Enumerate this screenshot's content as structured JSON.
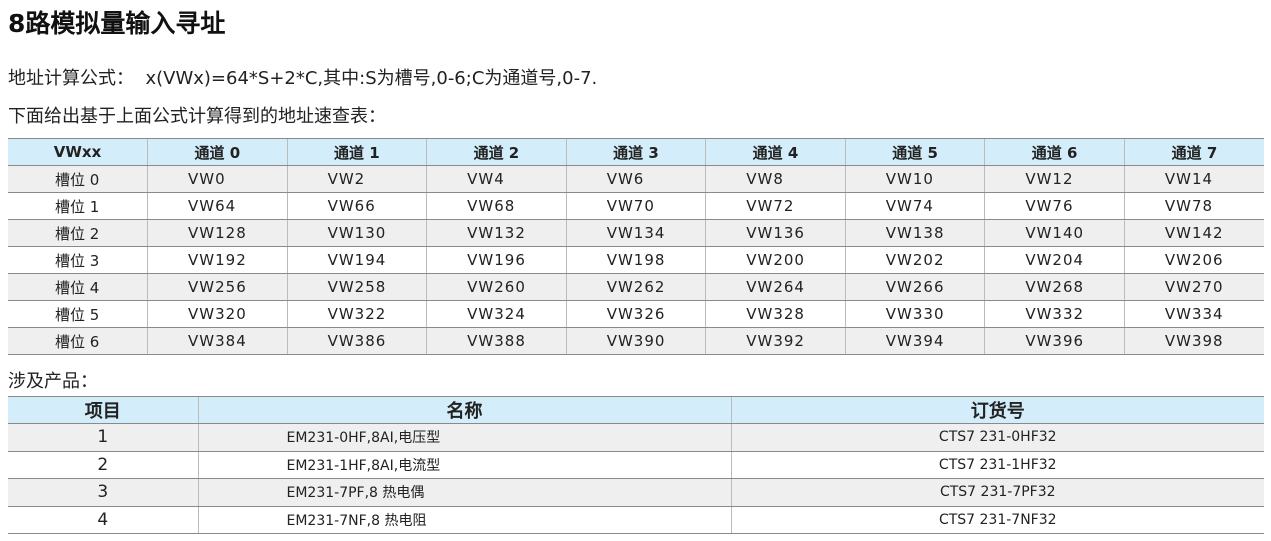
{
  "title": "8路模拟量输入寻址",
  "formula_label": "地址计算公式：",
  "formula": "x(VWx)=64*S+2*C,其中:S为槽号,0-6;C为通道号,0-7.",
  "intro": "下面给出基于上面公式计算得到的地址速查表：",
  "address_table": {
    "headers": [
      "VWxx",
      "通道 0",
      "通道 1",
      "通道 2",
      "通道 3",
      "通道 4",
      "通道 5",
      "通道 6",
      "通道 7"
    ],
    "rows": [
      [
        "槽位 0",
        "VW0",
        "VW2",
        "VW4",
        "VW6",
        "VW8",
        "VW10",
        "VW12",
        "VW14"
      ],
      [
        "槽位 1",
        "VW64",
        "VW66",
        "VW68",
        "VW70",
        "VW72",
        "VW74",
        "VW76",
        "VW78"
      ],
      [
        "槽位 2",
        "VW128",
        "VW130",
        "VW132",
        "VW134",
        "VW136",
        "VW138",
        "VW140",
        "VW142"
      ],
      [
        "槽位 3",
        "VW192",
        "VW194",
        "VW196",
        "VW198",
        "VW200",
        "VW202",
        "VW204",
        "VW206"
      ],
      [
        "槽位 4",
        "VW256",
        "VW258",
        "VW260",
        "VW262",
        "VW264",
        "VW266",
        "VW268",
        "VW270"
      ],
      [
        "槽位 5",
        "VW320",
        "VW322",
        "VW324",
        "VW326",
        "VW328",
        "VW330",
        "VW332",
        "VW334"
      ],
      [
        "槽位 6",
        "VW384",
        "VW386",
        "VW388",
        "VW390",
        "VW392",
        "VW394",
        "VW396",
        "VW398"
      ]
    ]
  },
  "products_label": "涉及产品：",
  "product_table": {
    "headers": [
      "项目",
      "名称",
      "订货号"
    ],
    "rows": [
      [
        "1",
        "EM231-0HF,8AI,电压型",
        "CTS7 231-0HF32"
      ],
      [
        "2",
        "EM231-1HF,8AI,电流型",
        "CTS7 231-1HF32"
      ],
      [
        "3",
        "EM231-7PF,8 热电偶",
        "CTS7 231-7PF32"
      ],
      [
        "4",
        "EM231-7NF,8 热电阻",
        "CTS7 231-7NF32"
      ]
    ]
  },
  "colors": {
    "header_bg": "#d3eefa",
    "alt_row_bg": "#efefef"
  }
}
